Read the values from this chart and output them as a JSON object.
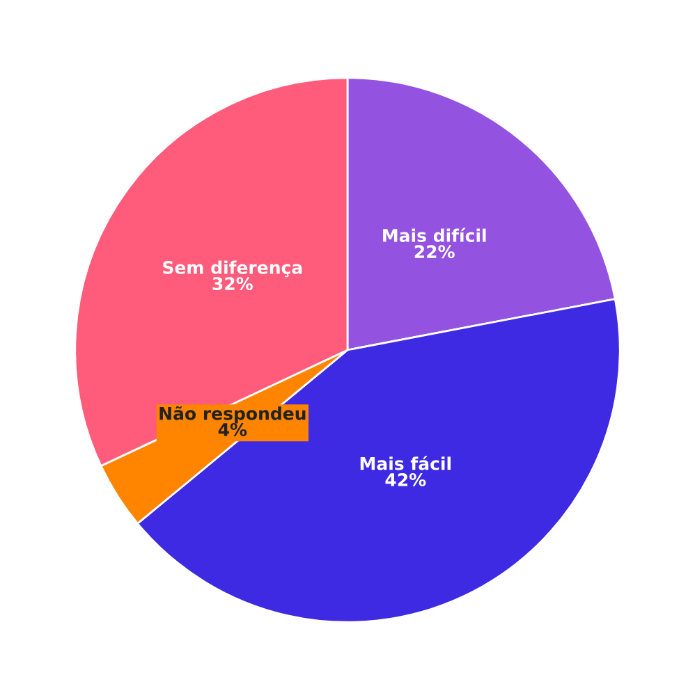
{
  "chart_data": {
    "type": "pie",
    "categories": [
      "Mais difícil",
      "Mais fácil",
      "Não respondeu",
      "Sem diferença"
    ],
    "values": [
      22,
      42,
      4,
      32
    ],
    "value_labels": [
      "22%",
      "42%",
      "4%",
      "32%"
    ],
    "colors": [
      "#9452e0",
      "#3e2ae3",
      "#ff8500",
      "#ff5b7b"
    ]
  }
}
